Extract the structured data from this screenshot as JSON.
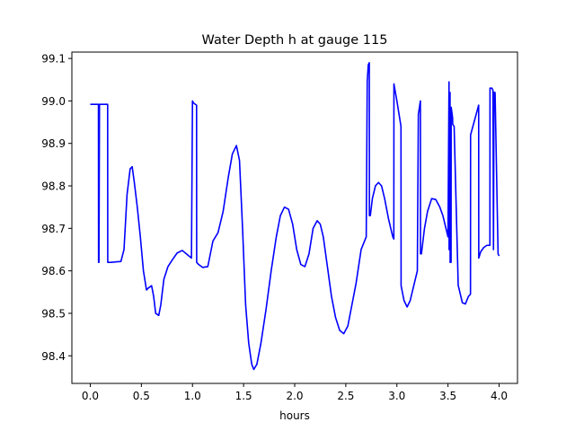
{
  "chart_data": {
    "type": "line",
    "title": "Water Depth h at gauge 115",
    "xlabel": "hours",
    "ylabel": "",
    "xlim": [
      -0.18,
      4.18
    ],
    "ylim": [
      98.335,
      99.115
    ],
    "xticks": [
      0.0,
      0.5,
      1.0,
      1.5,
      2.0,
      2.5,
      3.0,
      3.5,
      4.0
    ],
    "xtick_labels": [
      "0.0",
      "0.5",
      "1.0",
      "1.5",
      "2.0",
      "2.5",
      "3.0",
      "3.5",
      "4.0"
    ],
    "yticks": [
      98.4,
      98.5,
      98.6,
      98.7,
      98.8,
      98.9,
      99.0,
      99.1
    ],
    "ytick_labels": [
      "98.4",
      "98.5",
      "98.6",
      "98.7",
      "98.8",
      "98.9",
      "99.0",
      "99.1"
    ],
    "grid": false,
    "series": [
      {
        "color": "#0000ff",
        "x": [
          0.0,
          0.08,
          0.081,
          0.085,
          0.09,
          0.17,
          0.171,
          0.175,
          0.2,
          0.3,
          0.33,
          0.36,
          0.39,
          0.41,
          0.43,
          0.46,
          0.49,
          0.52,
          0.55,
          0.57,
          0.6,
          0.62,
          0.64,
          0.67,
          0.69,
          0.72,
          0.76,
          0.8,
          0.85,
          0.9,
          0.95,
          0.99,
          1.0,
          1.001,
          1.01,
          1.04,
          1.041,
          1.06,
          1.1,
          1.15,
          1.2,
          1.25,
          1.3,
          1.35,
          1.39,
          1.43,
          1.46,
          1.49,
          1.52,
          1.55,
          1.58,
          1.6,
          1.63,
          1.67,
          1.72,
          1.77,
          1.82,
          1.86,
          1.9,
          1.94,
          1.98,
          2.02,
          2.06,
          2.1,
          2.14,
          2.18,
          2.22,
          2.25,
          2.28,
          2.32,
          2.36,
          2.4,
          2.44,
          2.48,
          2.52,
          2.56,
          2.6,
          2.65,
          2.7,
          2.71,
          2.711,
          2.72,
          2.73,
          2.731,
          2.74,
          2.76,
          2.79,
          2.82,
          2.85,
          2.88,
          2.92,
          2.96,
          2.97,
          2.971,
          3.0,
          3.04,
          3.041,
          3.07,
          3.1,
          3.13,
          3.16,
          3.2,
          3.21,
          3.211,
          3.23,
          3.231,
          3.24,
          3.27,
          3.3,
          3.34,
          3.38,
          3.42,
          3.45,
          3.48,
          3.5,
          3.51,
          3.511,
          3.515,
          3.52,
          3.521,
          3.53,
          3.531,
          3.54,
          3.545,
          3.546,
          3.56,
          3.6,
          3.601,
          3.64,
          3.67,
          3.7,
          3.72,
          3.721,
          3.8,
          3.801,
          3.82,
          3.85,
          3.88,
          3.91,
          3.911,
          3.93,
          3.94,
          3.945,
          3.95,
          3.96,
          3.961,
          3.99,
          4.0
        ],
        "y": [
          98.992,
          98.992,
          98.62,
          98.62,
          98.992,
          98.992,
          98.62,
          98.62,
          98.62,
          98.622,
          98.65,
          98.78,
          98.84,
          98.845,
          98.81,
          98.75,
          98.68,
          98.6,
          98.555,
          98.56,
          98.565,
          98.54,
          98.5,
          98.495,
          98.52,
          98.58,
          98.61,
          98.625,
          98.642,
          98.648,
          98.638,
          98.63,
          99.0,
          99.0,
          98.995,
          98.99,
          98.62,
          98.615,
          98.608,
          98.61,
          98.67,
          98.69,
          98.74,
          98.82,
          98.875,
          98.895,
          98.86,
          98.7,
          98.52,
          98.43,
          98.38,
          98.368,
          98.38,
          98.43,
          98.51,
          98.6,
          98.68,
          98.73,
          98.75,
          98.745,
          98.71,
          98.65,
          98.615,
          98.61,
          98.64,
          98.7,
          98.718,
          98.71,
          98.68,
          98.61,
          98.54,
          98.49,
          98.46,
          98.452,
          98.47,
          98.52,
          98.57,
          98.65,
          98.68,
          99.05,
          99.05,
          99.085,
          99.09,
          98.73,
          98.73,
          98.77,
          98.8,
          98.808,
          98.8,
          98.77,
          98.72,
          98.68,
          98.675,
          99.04,
          99.0,
          98.94,
          98.565,
          98.53,
          98.515,
          98.53,
          98.56,
          98.6,
          98.97,
          98.97,
          99.0,
          98.64,
          98.64,
          98.7,
          98.74,
          98.77,
          98.768,
          98.75,
          98.73,
          98.7,
          98.68,
          99.045,
          98.65,
          98.65,
          99.02,
          98.62,
          98.62,
          98.985,
          98.97,
          98.96,
          98.945,
          98.94,
          98.565,
          98.565,
          98.525,
          98.522,
          98.54,
          98.545,
          98.92,
          98.99,
          98.63,
          98.645,
          98.655,
          98.66,
          98.66,
          99.03,
          99.03,
          99.025,
          98.65,
          99.02,
          99.02,
          99.015,
          98.64,
          98.635
        ]
      }
    ]
  }
}
